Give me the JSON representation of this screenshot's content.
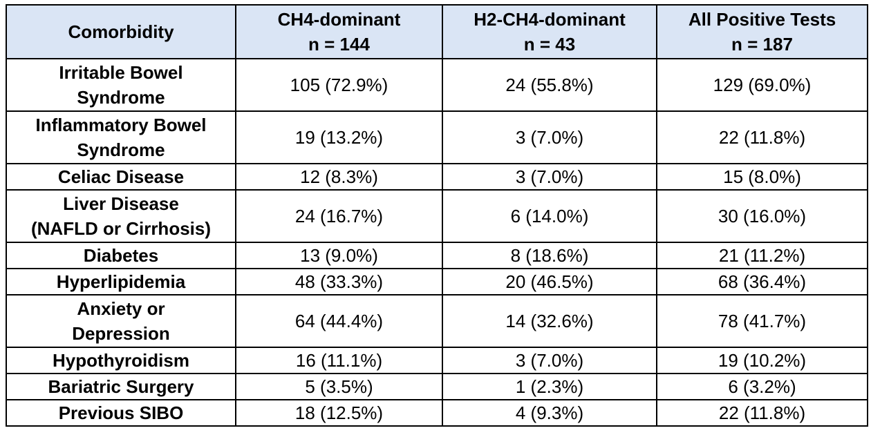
{
  "table": {
    "header": {
      "comorbidity": "Comorbidity",
      "col1": {
        "title": "CH4-dominant",
        "n": "n = 144"
      },
      "col2": {
        "title": "H2-CH4-dominant",
        "n": "n = 43"
      },
      "col3": {
        "title": "All Positive Tests",
        "n": "n = 187"
      }
    },
    "rows": [
      {
        "label": [
          "Irritable Bowel",
          "Syndrome"
        ],
        "ch4": "105 (72.9%)",
        "h2ch4": "24 (55.8%)",
        "all": "129 (69.0%)"
      },
      {
        "label": [
          "Inflammatory Bowel",
          "Syndrome"
        ],
        "ch4": "19 (13.2%)",
        "h2ch4": "3 (7.0%)",
        "all": "22 (11.8%)"
      },
      {
        "label": [
          "Celiac Disease"
        ],
        "ch4": "12 (8.3%)",
        "h2ch4": "3 (7.0%)",
        "all": "15 (8.0%)"
      },
      {
        "label": [
          "Liver Disease",
          "(NAFLD or Cirrhosis)"
        ],
        "ch4": "24 (16.7%)",
        "h2ch4": "6 (14.0%)",
        "all": "30 (16.0%)"
      },
      {
        "label": [
          "Diabetes"
        ],
        "ch4": "13 (9.0%)",
        "h2ch4": "8 (18.6%)",
        "all": "21 (11.2%)"
      },
      {
        "label": [
          "Hyperlipidemia"
        ],
        "ch4": "48 (33.3%)",
        "h2ch4": "20 (46.5%)",
        "all": "68 (36.4%)"
      },
      {
        "label": [
          "Anxiety or",
          "Depression"
        ],
        "ch4": "64 (44.4%)",
        "h2ch4": "14 (32.6%)",
        "all": "78 (41.7%)"
      },
      {
        "label": [
          "Hypothyroidism"
        ],
        "ch4": "16 (11.1%)",
        "h2ch4": "3 (7.0%)",
        "all": "19 (10.2%)"
      },
      {
        "label": [
          "Bariatric Surgery"
        ],
        "ch4": "5 (3.5%)",
        "h2ch4": "1 (2.3%)",
        "all": "6 (3.2%)"
      },
      {
        "label": [
          "Previous SIBO"
        ],
        "ch4": "18 (12.5%)",
        "h2ch4": "4 (9.3%)",
        "all": "22 (11.8%)"
      }
    ]
  }
}
